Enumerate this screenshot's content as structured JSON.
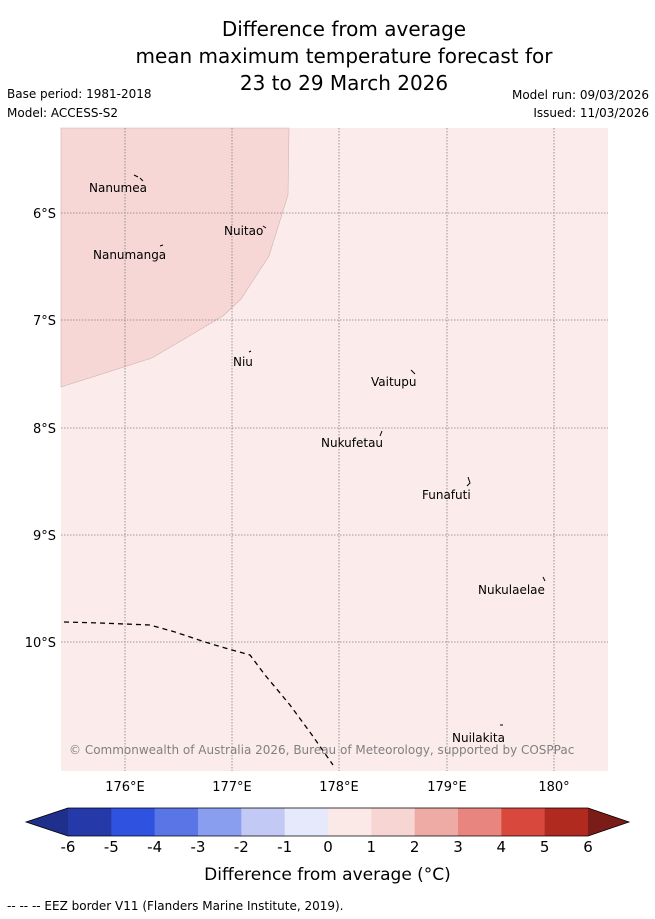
{
  "title": {
    "line1": "Difference from average",
    "line2": "mean maximum temperature forecast for",
    "line3": "23 to 29 March 2026"
  },
  "meta": {
    "base_period": "Base period: 1981-2018",
    "model": "Model: ACCESS-S2",
    "model_run": "Model run: 09/03/2026",
    "issued": "Issued: 11/03/2026"
  },
  "axes": {
    "lat_labels": [
      "6°S",
      "7°S",
      "8°S",
      "9°S",
      "10°S"
    ],
    "lon_labels": [
      "176°E",
      "177°E",
      "178°E",
      "179°E",
      "180°"
    ]
  },
  "places": [
    "Nanumea",
    "Nuitao",
    "Nanumanga",
    "Niu",
    "Vaitupu",
    "Nukufetau",
    "Funafuti",
    "Nukulaelae",
    "Nuilakita"
  ],
  "copyright": "© Commonwealth of Australia 2026, Bureau of Meteorology, supported by COSPPac",
  "colorbar": {
    "ticks": [
      "-6",
      "-5",
      "-4",
      "-3",
      "-2",
      "-1",
      "0",
      "1",
      "2",
      "3",
      "4",
      "5",
      "6"
    ],
    "colors": [
      "#2539a8",
      "#2f52e0",
      "#5a76e6",
      "#8a9ef0",
      "#c2c9f5",
      "#e6e9fb",
      "#fbe9e7",
      "#f7d5d2",
      "#eeaaa5",
      "#e8857e",
      "#d9483c",
      "#b02a20"
    ],
    "under_color": "#1f2f8c",
    "over_color": "#7a1c17",
    "label": "Difference from average (°C)"
  },
  "map_colors": {
    "zone_0_to_1": "#fbeceb",
    "zone_1_to_2": "#f6d7d5",
    "grid": "#7f7f7f",
    "eez": "#000000"
  },
  "footer": "-- -- -- EEZ border V11 (Flanders Marine Institute, 2019)."
}
